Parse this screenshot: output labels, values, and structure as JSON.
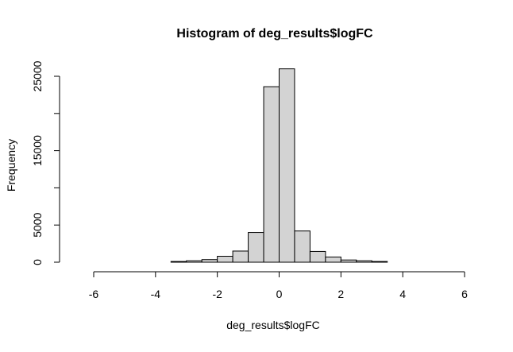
{
  "chart_data": {
    "type": "bar",
    "title": "Histogram of deg_results$logFC",
    "xlabel": "deg_results$logFC",
    "ylabel": "Frequency",
    "xlim": [
      -6,
      6
    ],
    "ylim": [
      0,
      25000
    ],
    "x_ticks": [
      -6,
      -4,
      -2,
      0,
      2,
      4,
      6
    ],
    "y_ticks": [
      0,
      5000,
      15000,
      25000
    ],
    "y_tick_labels": [
      "0",
      "5000",
      "15000",
      "25000"
    ],
    "bin_width": 0.5,
    "bins": [
      {
        "x0": -6.0,
        "x1": -5.5,
        "count": 0
      },
      {
        "x0": -5.5,
        "x1": -5.0,
        "count": 0
      },
      {
        "x0": -5.0,
        "x1": -4.5,
        "count": 0
      },
      {
        "x0": -4.5,
        "x1": -4.0,
        "count": 0
      },
      {
        "x0": -4.0,
        "x1": -3.5,
        "count": 0
      },
      {
        "x0": -3.5,
        "x1": -3.0,
        "count": 100
      },
      {
        "x0": -3.0,
        "x1": -2.5,
        "count": 200
      },
      {
        "x0": -2.5,
        "x1": -2.0,
        "count": 350
      },
      {
        "x0": -2.0,
        "x1": -1.5,
        "count": 800
      },
      {
        "x0": -1.5,
        "x1": -1.0,
        "count": 1500
      },
      {
        "x0": -1.0,
        "x1": -0.5,
        "count": 4000
      },
      {
        "x0": -0.5,
        "x1": 0.0,
        "count": 23600
      },
      {
        "x0": 0.0,
        "x1": 0.5,
        "count": 26000
      },
      {
        "x0": 0.5,
        "x1": 1.0,
        "count": 4200
      },
      {
        "x0": 1.0,
        "x1": 1.5,
        "count": 1450
      },
      {
        "x0": 1.5,
        "x1": 2.0,
        "count": 700
      },
      {
        "x0": 2.0,
        "x1": 2.5,
        "count": 300
      },
      {
        "x0": 2.5,
        "x1": 3.0,
        "count": 200
      },
      {
        "x0": 3.0,
        "x1": 3.5,
        "count": 100
      },
      {
        "x0": 3.5,
        "x1": 4.0,
        "count": 0
      },
      {
        "x0": 4.0,
        "x1": 4.5,
        "count": 0
      },
      {
        "x0": 4.5,
        "x1": 5.0,
        "count": 0
      },
      {
        "x0": 5.0,
        "x1": 5.5,
        "count": 0
      },
      {
        "x0": 5.5,
        "x1": 6.0,
        "count": 0
      }
    ],
    "bar_fill": "#d3d3d3",
    "bar_stroke": "#000000",
    "grid": false
  }
}
